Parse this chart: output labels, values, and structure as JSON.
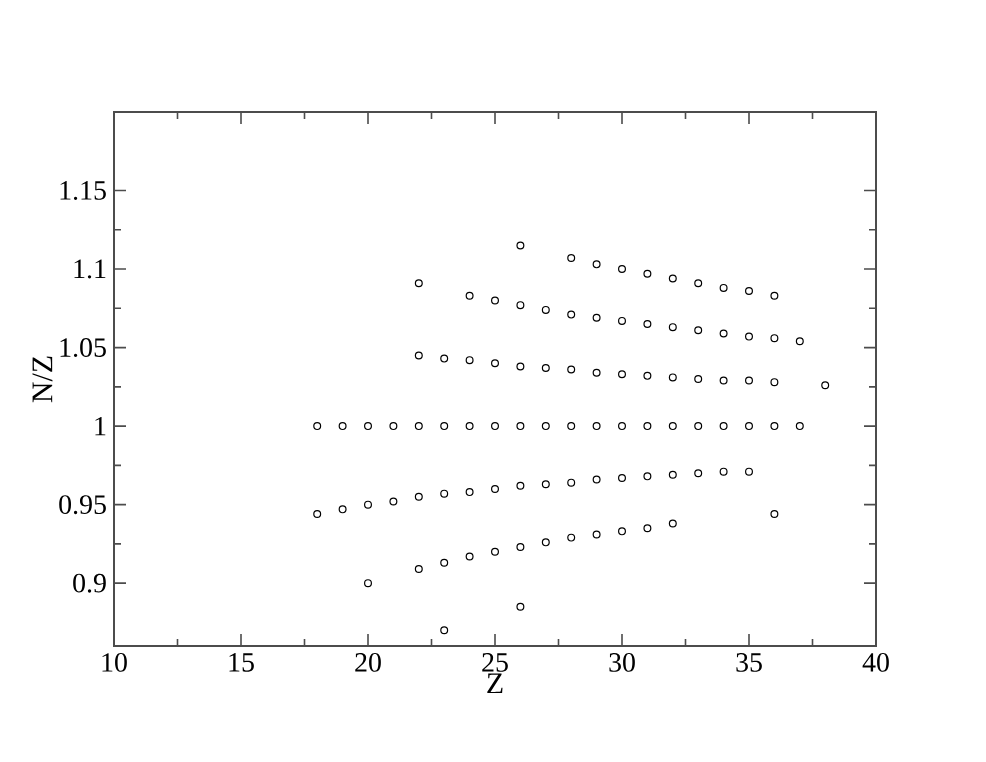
{
  "chart_data": {
    "type": "scatter",
    "xlabel": "Z",
    "ylabel": "N/Z",
    "marker": "circle",
    "color": "#000000",
    "xlim": [
      10,
      40
    ],
    "ylim": [
      0.86,
      1.2
    ],
    "xticks": [
      10,
      15,
      20,
      25,
      30,
      35,
      40
    ],
    "yticks": [
      0.9,
      0.95,
      1,
      1.05,
      1.1,
      1.15
    ],
    "x": [
      22,
      23,
      24,
      25,
      26,
      27,
      28,
      29,
      30,
      31,
      32,
      33,
      34,
      35,
      36,
      38,
      22,
      24,
      25,
      26,
      27,
      28,
      29,
      30,
      31,
      32,
      33,
      34,
      35,
      36,
      37,
      26,
      28,
      29,
      30,
      31,
      32,
      33,
      34,
      35,
      36,
      18,
      19,
      20,
      21,
      22,
      23,
      24,
      25,
      26,
      27,
      28,
      29,
      30,
      31,
      32,
      33,
      34,
      35,
      36,
      37,
      18,
      19,
      20,
      21,
      22,
      23,
      24,
      25,
      26,
      27,
      28,
      29,
      30,
      31,
      32,
      33,
      34,
      35,
      20,
      22,
      23,
      24,
      25,
      26,
      27,
      28,
      29,
      30,
      31,
      32,
      36,
      23,
      26
    ],
    "values": [
      1.045,
      1.043,
      1.042,
      1.04,
      1.038,
      1.037,
      1.036,
      1.034,
      1.033,
      1.032,
      1.031,
      1.03,
      1.029,
      1.029,
      1.028,
      1.026,
      1.091,
      1.083,
      1.08,
      1.077,
      1.074,
      1.071,
      1.069,
      1.067,
      1.065,
      1.063,
      1.061,
      1.059,
      1.057,
      1.056,
      1.054,
      1.115,
      1.107,
      1.103,
      1.1,
      1.097,
      1.094,
      1.091,
      1.088,
      1.086,
      1.083,
      1,
      1,
      1,
      1,
      1,
      1,
      1,
      1,
      1,
      1,
      1,
      1,
      1,
      1,
      1,
      1,
      1,
      1,
      1,
      1,
      0.944,
      0.947,
      0.95,
      0.952,
      0.955,
      0.957,
      0.958,
      0.96,
      0.962,
      0.963,
      0.964,
      0.966,
      0.967,
      0.968,
      0.969,
      0.97,
      0.971,
      0.971,
      0.9,
      0.909,
      0.913,
      0.917,
      0.92,
      0.923,
      0.926,
      0.929,
      0.931,
      0.933,
      0.935,
      0.938,
      0.944,
      0.87,
      0.885
    ]
  }
}
